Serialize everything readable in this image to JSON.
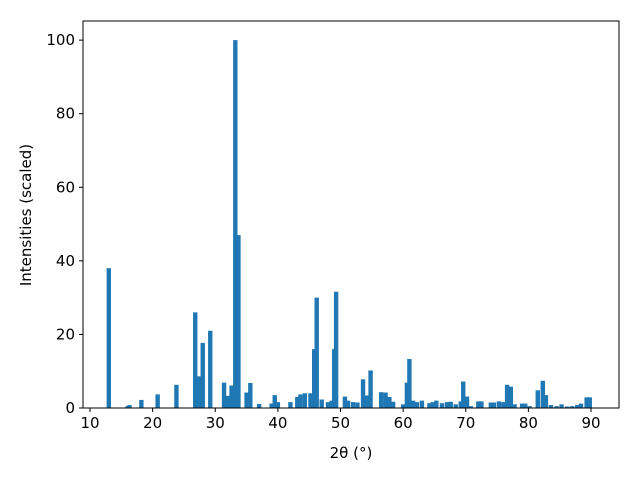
{
  "chart_data": {
    "type": "bar",
    "xlabel": "2θ (°)",
    "ylabel": "Intensities (scaled)",
    "x": [
      13.0,
      16.0,
      16.3,
      18.2,
      20.8,
      23.8,
      26.8,
      27.4,
      28.0,
      29.2,
      31.4,
      32.0,
      32.6,
      33.2,
      33.7,
      35.0,
      35.6,
      37.0,
      39.0,
      39.5,
      40.0,
      42.0,
      43.1,
      43.6,
      44.3,
      45.2,
      45.8,
      46.2,
      47.0,
      48.0,
      48.6,
      49.0,
      49.3,
      50.7,
      51.2,
      52.0,
      52.7,
      53.6,
      54.2,
      54.8,
      56.5,
      57.2,
      57.8,
      58.4,
      60.0,
      60.6,
      61.0,
      61.6,
      62.2,
      63.0,
      64.2,
      64.7,
      65.3,
      66.2,
      67.0,
      67.6,
      68.4,
      69.2,
      69.6,
      70.2,
      70.8,
      72.0,
      72.5,
      74.0,
      74.5,
      75.3,
      76.0,
      76.6,
      77.2,
      77.8,
      79.0,
      79.5,
      80.2,
      81.5,
      82.3,
      82.8,
      83.6,
      84.5,
      85.3,
      86.2,
      87.0,
      87.8,
      88.4,
      89.3,
      89.8
    ],
    "values": [
      38,
      0.5,
      0.8,
      2.2,
      3.7,
      6.3,
      26,
      8.6,
      17.7,
      21,
      6.9,
      3.3,
      6.1,
      100,
      47,
      4.2,
      6.8,
      1.1,
      1.2,
      3.5,
      1.6,
      1.6,
      3.0,
      3.7,
      4.0,
      4.0,
      16,
      30,
      2.3,
      1.6,
      2.0,
      16,
      31.6,
      3.1,
      2.0,
      1.6,
      1.5,
      7.8,
      3.4,
      10.2,
      4.3,
      4.2,
      3.0,
      1.7,
      1.0,
      6.9,
      13.3,
      2.0,
      1.6,
      2.0,
      1.3,
      1.6,
      2.0,
      1.3,
      1.6,
      1.7,
      1.0,
      1.8,
      7.2,
      3.1,
      0.5,
      1.8,
      1.8,
      1.5,
      1.5,
      1.8,
      1.6,
      6.3,
      5.8,
      1.0,
      1.2,
      1.2,
      0.5,
      4.8,
      7.4,
      3.5,
      0.8,
      0.5,
      1.0,
      0.4,
      0.5,
      0.8,
      1.2,
      2.9,
      2.9
    ],
    "color": "#1f77b4",
    "xlim": [
      8.88,
      94.47
    ],
    "ylim": [
      0,
      105.2
    ],
    "xticks": [
      10,
      20,
      30,
      40,
      50,
      60,
      70,
      80,
      90
    ],
    "yticks": [
      0,
      20,
      40,
      60,
      80,
      100
    ]
  }
}
